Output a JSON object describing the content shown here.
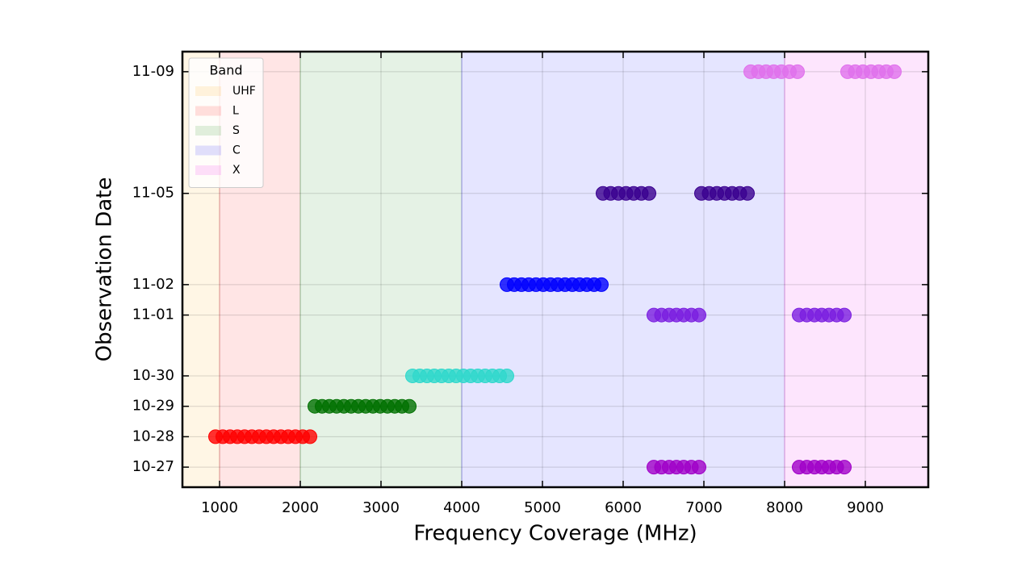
{
  "chart_data": {
    "type": "scatter",
    "xlabel": "Frequency Coverage (MHz)",
    "ylabel": "Observation Date",
    "xlim": [
      540,
      9780
    ],
    "xticks": [
      1000,
      2000,
      3000,
      4000,
      5000,
      6000,
      7000,
      8000,
      9000
    ],
    "ylim": [
      "10-27",
      "11-09"
    ],
    "yticks": [
      "10-27",
      "10-28",
      "10-29",
      "10-30",
      "11-01",
      "11-02",
      "11-05",
      "11-09"
    ],
    "grid": true,
    "legend": {
      "title": "Band",
      "loc": "upper left"
    },
    "bands": [
      {
        "name": "UHF",
        "range": [
          300,
          1000
        ],
        "color": "#ffa500"
      },
      {
        "name": "L",
        "range": [
          1000,
          2000
        ],
        "color": "#ff0000"
      },
      {
        "name": "S",
        "range": [
          2000,
          4000
        ],
        "color": "#008000"
      },
      {
        "name": "C",
        "range": [
          4000,
          8000
        ],
        "color": "#0000ff"
      },
      {
        "name": "X",
        "range": [
          8000,
          12000
        ],
        "color": "#ee00ee"
      }
    ],
    "series": [
      {
        "color": "#ff0000",
        "y": "10-28",
        "x": [
          950,
          1040,
          1130,
          1220,
          1310,
          1400,
          1490,
          1580,
          1670,
          1760,
          1850,
          1940,
          2030,
          2120
        ]
      },
      {
        "color": "#007000",
        "y": "10-29",
        "x": [
          2180,
          2270,
          2360,
          2450,
          2540,
          2630,
          2720,
          2810,
          2900,
          2990,
          3080,
          3170,
          3260,
          3350
        ]
      },
      {
        "color": "#30d8cc",
        "y": "10-30",
        "x": [
          3390,
          3480,
          3570,
          3660,
          3750,
          3840,
          3930,
          4020,
          4110,
          4200,
          4290,
          4380,
          4470,
          4560
        ]
      },
      {
        "color": "#0000ff",
        "y": "11-02",
        "x": [
          4560,
          4650,
          4740,
          4830,
          4920,
          5010,
          5100,
          5190,
          5280,
          5370,
          5460,
          5550,
          5640,
          5730
        ]
      },
      {
        "color": "#3a0090",
        "y": "11-05",
        "x": [
          5750,
          5845,
          5940,
          6035,
          6130,
          6225,
          6320,
          6970,
          7065,
          7160,
          7255,
          7350,
          7445,
          7540
        ]
      },
      {
        "color": "#7a1ee0",
        "y": "11-01",
        "x": [
          6380,
          6475,
          6570,
          6660,
          6750,
          6845,
          6940,
          8180,
          8275,
          8370,
          8460,
          8550,
          8645,
          8740
        ]
      },
      {
        "color": "#a000c8",
        "y": "10-27",
        "x": [
          6380,
          6475,
          6570,
          6660,
          6750,
          6845,
          6940,
          8180,
          8275,
          8370,
          8460,
          8550,
          8645,
          8740
        ]
      },
      {
        "color": "#e070ec",
        "y": "11-09",
        "x": [
          7580,
          7675,
          7770,
          7865,
          7960,
          8060,
          8160,
          8780,
          8875,
          8970,
          9070,
          9165,
          9260,
          9360
        ]
      }
    ]
  }
}
